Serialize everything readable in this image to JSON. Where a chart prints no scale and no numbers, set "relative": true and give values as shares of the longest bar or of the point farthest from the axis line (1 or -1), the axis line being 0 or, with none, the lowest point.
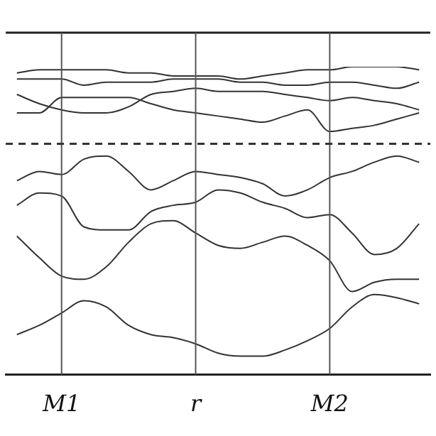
{
  "chart_data": {
    "type": "line",
    "relative": true,
    "legend": false,
    "grid": false,
    "marker": "none",
    "line_style": "solid",
    "categories": [
      null,
      null,
      "M1",
      null,
      null,
      null,
      null,
      null,
      "r",
      null,
      null,
      null,
      null,
      null,
      "M2",
      null,
      null,
      null,
      null
    ],
    "series": [
      {
        "color": "#333333",
        "values": [
          0.98,
          0.99,
          0.99,
          0.99,
          0.99,
          0.98,
          0.98,
          0.97,
          0.97,
          0.97,
          0.96,
          0.97,
          0.98,
          0.99,
          0.99,
          1,
          1,
          1,
          0.99
        ]
      },
      {
        "color": "#333333",
        "values": [
          0.96,
          0.96,
          0.96,
          0.94,
          0.95,
          0.95,
          0.95,
          0.96,
          0.96,
          0.96,
          0.95,
          0.95,
          0.94,
          0.94,
          0.95,
          0.95,
          0.94,
          0.93,
          0.95
        ]
      },
      {
        "color": "#333333",
        "values": [
          0.91,
          0.88,
          0.86,
          0.85,
          0.85,
          0.87,
          0.91,
          0.92,
          0.93,
          0.92,
          0.92,
          0.92,
          0.91,
          0.9,
          0.89,
          0.9,
          0.89,
          0.88,
          0.86
        ]
      },
      {
        "color": "#333333",
        "values": [
          0.85,
          0.85,
          0.9,
          0.9,
          0.9,
          0.9,
          0.88,
          0.86,
          0.85,
          0.84,
          0.83,
          0.82,
          0.84,
          0.86,
          0.79,
          0.8,
          0.81,
          0.83,
          0.85
        ]
      },
      {
        "color": "#333333",
        "values": [
          0.63,
          0.66,
          0.65,
          0.7,
          0.71,
          0.66,
          0.6,
          0.63,
          0.66,
          0.65,
          0.64,
          0.62,
          0.58,
          0.6,
          0.64,
          0.66,
          0.69,
          0.71,
          0.69
        ]
      },
      {
        "color": "#333333",
        "values": [
          0.55,
          0.59,
          0.58,
          0.48,
          0.47,
          0.47,
          0.53,
          0.55,
          0.56,
          0.6,
          0.59,
          0.56,
          0.54,
          0.51,
          0.52,
          0.46,
          0.39,
          0.41,
          0.49
        ]
      },
      {
        "color": "#333333",
        "values": [
          0.45,
          0.38,
          0.32,
          0.31,
          0.35,
          0.43,
          0.49,
          0.5,
          0.46,
          0.42,
          0.41,
          0.43,
          0.45,
          0.42,
          0.37,
          0.27,
          0.3,
          0.31,
          0.31
        ]
      },
      {
        "color": "#333333",
        "values": [
          0.13,
          0.16,
          0.2,
          0.24,
          0.22,
          0.16,
          0.13,
          0.12,
          0.1,
          0.07,
          0.06,
          0.06,
          0.08,
          0.11,
          0.15,
          0.22,
          0.26,
          0.25,
          0.23
        ]
      }
    ],
    "ref_lines": [
      {
        "axis": "x",
        "value": "M1",
        "color": "#555555"
      },
      {
        "axis": "x",
        "value": "r",
        "color": "#555555"
      },
      {
        "axis": "x",
        "value": "M2",
        "color": "#555555"
      },
      {
        "axis": "y",
        "value": 0.75,
        "color": "#333333",
        "line_style": "dashed"
      }
    ]
  }
}
